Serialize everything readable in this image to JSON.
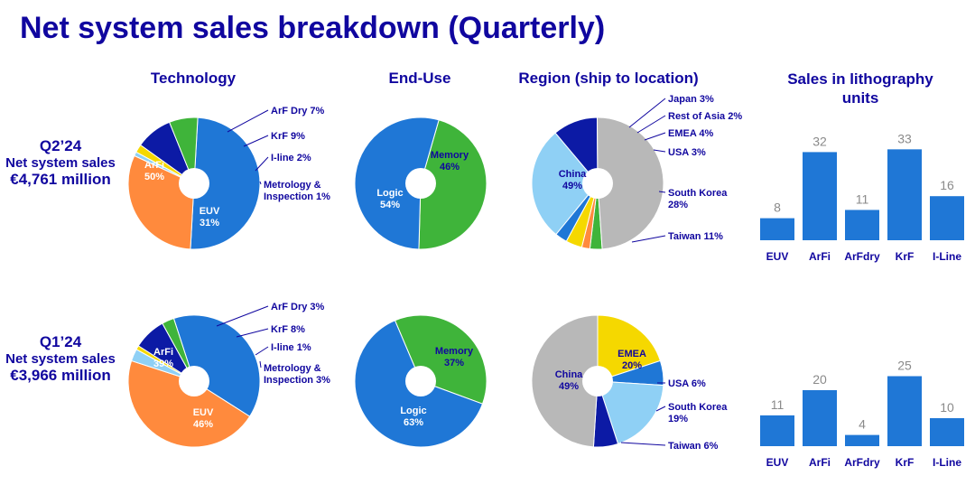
{
  "title": "Net system sales breakdown (Quarterly)",
  "columns": {
    "technology": "Technology",
    "end_use": "End-Use",
    "region": "Region (ship to location)",
    "units": "Sales in lithography units"
  },
  "quarters": [
    {
      "label": "Q2’24",
      "sales_label": "Net system sales",
      "amount": "€4,761 million"
    },
    {
      "label": "Q1’24",
      "sales_label": "Net system sales",
      "amount": "€3,966 million"
    }
  ],
  "colors": {
    "arfi": "#1f77d6",
    "euv": "#ff8a3d",
    "arfdry": "#3fb43a",
    "krf": "#0c1aa5",
    "iline": "#f5d800",
    "metrology": "#8fd0f5",
    "logic": "#1f77d6",
    "memory": "#3fb43a",
    "china": "#b8b8b8",
    "southkorea": "#8fd0f5",
    "taiwan": "#0c1aa5",
    "usa": "#1f77d6",
    "emea": "#f5d800",
    "restofasia": "#ff8a3d",
    "japan": "#3fb43a",
    "bar": "#1f77d6",
    "navy": "#10069f"
  },
  "chart_data": [
    {
      "id": "tech-q2",
      "type": "pie",
      "title": "Technology",
      "slices": [
        {
          "name": "ArFi",
          "value": 50,
          "label": "ArFi",
          "pct": "50%",
          "color": "arfi",
          "inside": true
        },
        {
          "name": "EUV",
          "value": 31,
          "label": "EUV",
          "pct": "31%",
          "color": "euv",
          "inside": true
        },
        {
          "name": "Metrology & Inspection",
          "value": 1,
          "callout": [
            "Metrology &",
            "Inspection 1%"
          ],
          "color": "metrology"
        },
        {
          "name": "I-line",
          "value": 2,
          "callout": [
            "I-line 2%"
          ],
          "color": "iline"
        },
        {
          "name": "KrF",
          "value": 9,
          "callout": [
            "KrF 9%"
          ],
          "color": "krf"
        },
        {
          "name": "ArF Dry",
          "value": 7,
          "callout": [
            "ArF Dry 7%"
          ],
          "color": "arfdry"
        }
      ]
    },
    {
      "id": "enduse-q2",
      "type": "pie",
      "title": "End-Use",
      "slices": [
        {
          "name": "Memory",
          "value": 46,
          "label": "Memory",
          "pct": "46%",
          "color": "memory",
          "inside": true,
          "dark": true
        },
        {
          "name": "Logic",
          "value": 54,
          "label": "Logic",
          "pct": "54%",
          "color": "logic",
          "inside": true
        }
      ]
    },
    {
      "id": "region-q2",
      "type": "pie",
      "title": "Region (ship to location)",
      "slices": [
        {
          "name": "Japan",
          "value": 3,
          "callout": [
            "Japan 3%"
          ],
          "color": "japan"
        },
        {
          "name": "Rest of Asia",
          "value": 2,
          "callout": [
            "Rest of Asia 2%"
          ],
          "color": "restofasia"
        },
        {
          "name": "EMEA",
          "value": 4,
          "callout": [
            "EMEA 4%"
          ],
          "color": "emea"
        },
        {
          "name": "USA",
          "value": 3,
          "callout": [
            "USA 3%"
          ],
          "color": "usa"
        },
        {
          "name": "South Korea",
          "value": 28,
          "callout": [
            "South Korea",
            "28%"
          ],
          "color": "southkorea"
        },
        {
          "name": "Taiwan",
          "value": 11,
          "callout": [
            "Taiwan 11%"
          ],
          "color": "taiwan"
        },
        {
          "name": "China",
          "value": 49,
          "label": "China",
          "pct": "49%",
          "color": "china",
          "inside": true,
          "dark": true
        }
      ]
    },
    {
      "id": "units-q2",
      "type": "bar",
      "title": "Sales in lithography units",
      "categories": [
        "EUV",
        "ArFi",
        "ArFdry",
        "KrF",
        "I-Line"
      ],
      "values": [
        8,
        32,
        11,
        33,
        16
      ],
      "value_labels": [
        "8",
        "32",
        "11",
        "33",
        "16"
      ]
    },
    {
      "id": "tech-q1",
      "type": "pie",
      "title": "Technology",
      "slices": [
        {
          "name": "ArFi",
          "value": 39,
          "label": "ArFi",
          "pct": "39%",
          "color": "arfi",
          "inside": true
        },
        {
          "name": "EUV",
          "value": 46,
          "label": "EUV",
          "pct": "46%",
          "color": "euv",
          "inside": true
        },
        {
          "name": "Metrology & Inspection",
          "value": 3,
          "callout": [
            "Metrology &",
            "Inspection 3%"
          ],
          "color": "metrology"
        },
        {
          "name": "I-line",
          "value": 1,
          "callout": [
            "I-line 1%"
          ],
          "color": "iline"
        },
        {
          "name": "KrF",
          "value": 8,
          "callout": [
            "KrF 8%"
          ],
          "color": "krf"
        },
        {
          "name": "ArF Dry",
          "value": 3,
          "callout": [
            "ArF Dry 3%"
          ],
          "color": "arfdry"
        }
      ]
    },
    {
      "id": "enduse-q1",
      "type": "pie",
      "title": "End-Use",
      "slices": [
        {
          "name": "Memory",
          "value": 37,
          "label": "Memory",
          "pct": "37%",
          "color": "memory",
          "inside": true,
          "dark": true
        },
        {
          "name": "Logic",
          "value": 63,
          "label": "Logic",
          "pct": "63%",
          "color": "logic",
          "inside": true
        }
      ]
    },
    {
      "id": "region-q1",
      "type": "pie",
      "title": "Region (ship to location)",
      "slices": [
        {
          "name": "EMEA",
          "value": 20,
          "label": "EMEA",
          "pct": "20%",
          "color": "emea",
          "inside": true,
          "dark": true
        },
        {
          "name": "USA",
          "value": 6,
          "callout": [
            "USA 6%"
          ],
          "color": "usa"
        },
        {
          "name": "South Korea",
          "value": 19,
          "callout": [
            "South Korea",
            "19%"
          ],
          "color": "southkorea"
        },
        {
          "name": "Taiwan",
          "value": 6,
          "callout": [
            "Taiwan 6%"
          ],
          "color": "taiwan"
        },
        {
          "name": "China",
          "value": 49,
          "label": "China",
          "pct": "49%",
          "color": "china",
          "inside": true,
          "dark": true
        }
      ]
    },
    {
      "id": "units-q1",
      "type": "bar",
      "title": "Sales in lithography units",
      "categories": [
        "EUV",
        "ArFi",
        "ArFdry",
        "KrF",
        "I-Line"
      ],
      "values": [
        11,
        20,
        4,
        25,
        10
      ],
      "value_labels": [
        "11",
        "20",
        "4",
        "25",
        "10"
      ]
    }
  ]
}
